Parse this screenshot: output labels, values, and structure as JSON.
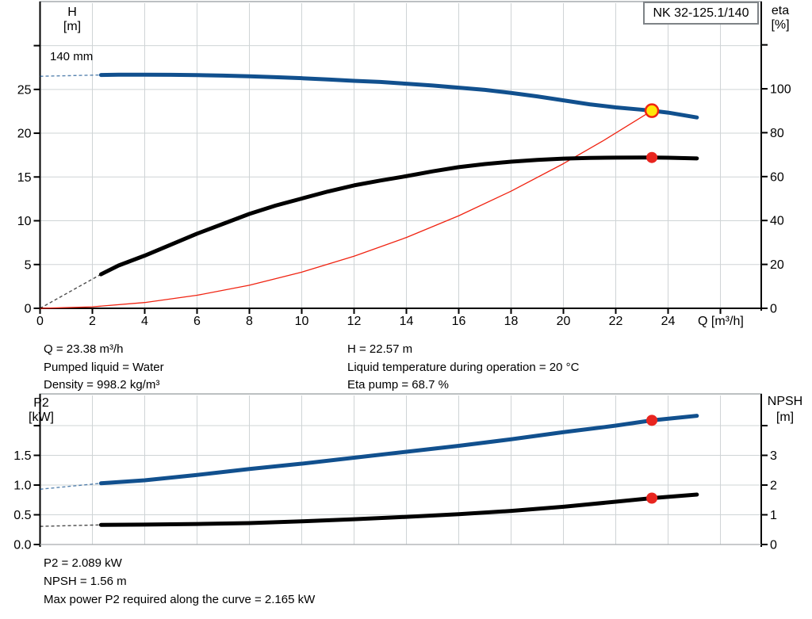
{
  "model_box": {
    "label": "NK 32-125.1/140"
  },
  "impeller_label": "140 mm",
  "colors": {
    "curve_blue": "#11508e",
    "curve_black": "#000000",
    "curve_red": "#f02311",
    "marker_yellow": "#ffe60a",
    "marker_red": "#e8251f",
    "grid": "#cfd4d6",
    "border": "#a6abae",
    "axis": "#000000",
    "text": "#000000"
  },
  "operating_point_info": {
    "left": [
      "Q = 23.38 m³/h",
      "Pumped liquid = Water",
      "Density = 998.2 kg/m³"
    ],
    "right": [
      "H = 22.57 m",
      "Liquid temperature during operation = 20 °C",
      "Eta pump = 68.7 %"
    ]
  },
  "power_info": [
    "P2 = 2.089 kW",
    "NPSH = 1.56 m",
    "Max power P2 required along the curve = 2.165 kW"
  ],
  "chart_data": [
    {
      "type": "line",
      "title": "NK 32-125.1/140",
      "x": {
        "label": "Q [m³/h]",
        "min": 0,
        "max": 27.56,
        "ticks": [
          {
            "v": 0,
            "t": "0"
          },
          {
            "v": 2,
            "t": "2"
          },
          {
            "v": 4,
            "t": "4"
          },
          {
            "v": 6,
            "t": "6"
          },
          {
            "v": 8,
            "t": "8"
          },
          {
            "v": 10,
            "t": "10"
          },
          {
            "v": 12,
            "t": "12"
          },
          {
            "v": 14,
            "t": "14"
          },
          {
            "v": 16,
            "t": "16"
          },
          {
            "v": 18,
            "t": "18"
          },
          {
            "v": 20,
            "t": "20"
          },
          {
            "v": 22,
            "t": "22"
          },
          {
            "v": 24,
            "t": "24"
          },
          {
            "v": 26,
            "t": ""
          }
        ]
      },
      "y_left": {
        "title": [
          "H",
          "[m]"
        ],
        "min": 0,
        "max": 34.85,
        "ticks": [
          {
            "v": 0,
            "t": "0"
          },
          {
            "v": 5,
            "t": "5"
          },
          {
            "v": 10,
            "t": "10"
          },
          {
            "v": 15,
            "t": "15"
          },
          {
            "v": 20,
            "t": "20"
          },
          {
            "v": 25,
            "t": "25"
          },
          {
            "v": 30,
            "t": ""
          }
        ]
      },
      "y_right": {
        "title": [
          "eta",
          "[%]"
        ],
        "min": 0,
        "max": 139,
        "ticks": [
          {
            "v": 0,
            "t": "0"
          },
          {
            "v": 20,
            "t": "20"
          },
          {
            "v": 40,
            "t": "40"
          },
          {
            "v": 60,
            "t": "60"
          },
          {
            "v": 80,
            "t": "80"
          },
          {
            "v": 100,
            "t": "100"
          },
          {
            "v": 120,
            "t": ""
          }
        ]
      },
      "series": [
        {
          "name": "system-curve",
          "axis": "left",
          "color": "red",
          "width": 1.3,
          "points": [
            [
              0,
              0
            ],
            [
              2,
              0.17
            ],
            [
              4,
              0.66
            ],
            [
              6,
              1.49
            ],
            [
              8,
              2.64
            ],
            [
              10,
              4.13
            ],
            [
              12,
              5.95
            ],
            [
              14,
              8.09
            ],
            [
              16,
              10.57
            ],
            [
              18,
              13.38
            ],
            [
              20,
              16.52
            ],
            [
              21.5,
              19.1
            ],
            [
              23.38,
              22.57
            ]
          ]
        },
        {
          "name": "eta-curve",
          "axis": "right",
          "color": "black",
          "width": 5,
          "points": [
            [
              2.33,
              15.5
            ],
            [
              3,
              19.5
            ],
            [
              4,
              24
            ],
            [
              5,
              29
            ],
            [
              6,
              34
            ],
            [
              7,
              38.5
            ],
            [
              8,
              43
            ],
            [
              9,
              46.8
            ],
            [
              10,
              50
            ],
            [
              11,
              53.2
            ],
            [
              12,
              56
            ],
            [
              13,
              58.2
            ],
            [
              14,
              60.2
            ],
            [
              15,
              62.4
            ],
            [
              16,
              64.3
            ],
            [
              17,
              65.7
            ],
            [
              18,
              66.8
            ],
            [
              19,
              67.6
            ],
            [
              20,
              68.2
            ],
            [
              21,
              68.5
            ],
            [
              22,
              68.65
            ],
            [
              23,
              68.7
            ],
            [
              23.38,
              68.7
            ],
            [
              24,
              68.6
            ],
            [
              25.1,
              68.3
            ]
          ],
          "lead": [
            [
              0,
              0
            ],
            [
              2.33,
              15.5
            ]
          ]
        },
        {
          "name": "head-curve",
          "axis": "left",
          "color": "blue",
          "width": 5,
          "points": [
            [
              2.33,
              26.65
            ],
            [
              3,
              26.68
            ],
            [
              4,
              26.68
            ],
            [
              5,
              26.67
            ],
            [
              6,
              26.63
            ],
            [
              7,
              26.58
            ],
            [
              8,
              26.5
            ],
            [
              9,
              26.4
            ],
            [
              10,
              26.28
            ],
            [
              11,
              26.14
            ],
            [
              12,
              25.98
            ],
            [
              13,
              25.85
            ],
            [
              14,
              25.65
            ],
            [
              15,
              25.45
            ],
            [
              16,
              25.2
            ],
            [
              17,
              24.95
            ],
            [
              18,
              24.6
            ],
            [
              19,
              24.2
            ],
            [
              20,
              23.75
            ],
            [
              21,
              23.3
            ],
            [
              22,
              22.95
            ],
            [
              23,
              22.68
            ],
            [
              23.38,
              22.57
            ],
            [
              24,
              22.35
            ],
            [
              25.1,
              21.8
            ]
          ],
          "lead": [
            [
              0,
              26.5
            ],
            [
              2.33,
              26.65
            ]
          ]
        }
      ],
      "markers": [
        {
          "name": "duty-point",
          "axis": "left",
          "q": 23.38,
          "v": 22.57,
          "style": "yellow"
        },
        {
          "name": "eta-point",
          "axis": "right",
          "q": 23.38,
          "v": 68.7,
          "style": "red"
        }
      ]
    },
    {
      "type": "line",
      "title": "P2 / NPSH",
      "x": {
        "label": "",
        "min": 0,
        "max": 27.56,
        "ticks": [
          {
            "v": 2,
            "t": ""
          },
          {
            "v": 4,
            "t": ""
          },
          {
            "v": 6,
            "t": ""
          },
          {
            "v": 8,
            "t": ""
          },
          {
            "v": 10,
            "t": ""
          },
          {
            "v": 12,
            "t": ""
          },
          {
            "v": 14,
            "t": ""
          },
          {
            "v": 16,
            "t": ""
          },
          {
            "v": 18,
            "t": ""
          },
          {
            "v": 20,
            "t": ""
          },
          {
            "v": 22,
            "t": ""
          },
          {
            "v": 24,
            "t": ""
          },
          {
            "v": 26,
            "t": ""
          }
        ]
      },
      "y_left": {
        "title": [
          "P2",
          "[kW]"
        ],
        "min": 0,
        "max": 2.507,
        "ticks": [
          {
            "v": 0,
            "t": "0.0"
          },
          {
            "v": 0.5,
            "t": "0.5"
          },
          {
            "v": 1,
            "t": "1.0"
          },
          {
            "v": 1.5,
            "t": "1.5"
          },
          {
            "v": 2,
            "t": ""
          }
        ]
      },
      "y_right": {
        "title": [
          "NPSH",
          "[m]"
        ],
        "min": 0,
        "max": 5.013,
        "ticks": [
          {
            "v": 0,
            "t": "0"
          },
          {
            "v": 1,
            "t": "1"
          },
          {
            "v": 2,
            "t": "2"
          },
          {
            "v": 3,
            "t": "3"
          },
          {
            "v": 4,
            "t": ""
          }
        ]
      },
      "series": [
        {
          "name": "npsh-curve",
          "axis": "right",
          "color": "black",
          "width": 5,
          "points": [
            [
              2.33,
              0.66
            ],
            [
              4,
              0.67
            ],
            [
              6,
              0.69
            ],
            [
              8,
              0.72
            ],
            [
              10,
              0.78
            ],
            [
              12,
              0.85
            ],
            [
              14,
              0.93
            ],
            [
              16,
              1.02
            ],
            [
              18,
              1.13
            ],
            [
              20,
              1.27
            ],
            [
              22,
              1.44
            ],
            [
              23.38,
              1.56
            ],
            [
              25.1,
              1.68
            ]
          ],
          "lead": [
            [
              0,
              0.61
            ],
            [
              2.33,
              0.66
            ]
          ]
        },
        {
          "name": "p2-curve",
          "axis": "left",
          "color": "blue",
          "width": 5,
          "points": [
            [
              2.33,
              1.03
            ],
            [
              4,
              1.08
            ],
            [
              6,
              1.17
            ],
            [
              8,
              1.27
            ],
            [
              10,
              1.36
            ],
            [
              12,
              1.46
            ],
            [
              14,
              1.56
            ],
            [
              16,
              1.66
            ],
            [
              18,
              1.77
            ],
            [
              20,
              1.89
            ],
            [
              22,
              2.0
            ],
            [
              23.38,
              2.089
            ],
            [
              25.1,
              2.165
            ]
          ],
          "lead": [
            [
              0,
              0.93
            ],
            [
              2.33,
              1.03
            ]
          ]
        }
      ],
      "markers": [
        {
          "name": "p2-point",
          "axis": "left",
          "q": 23.38,
          "v": 2.089,
          "style": "red"
        },
        {
          "name": "npsh-point",
          "axis": "right",
          "q": 23.38,
          "v": 1.56,
          "style": "red"
        }
      ]
    }
  ]
}
